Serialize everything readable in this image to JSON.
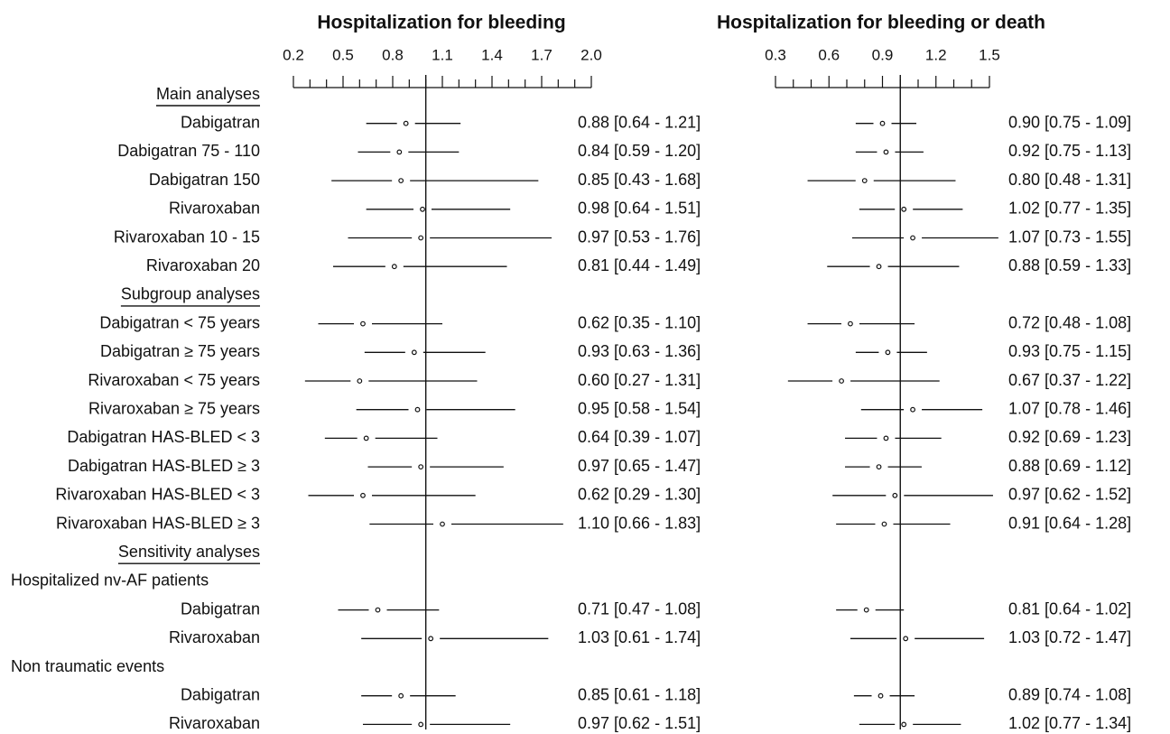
{
  "chart_data": {
    "type": "forest",
    "rows": [
      {
        "label": "Main analyses",
        "kind": "section"
      },
      {
        "label": "Dabigatran",
        "kind": "item"
      },
      {
        "label": "Dabigatran 75 - 110",
        "kind": "item"
      },
      {
        "label": "Dabigatran 150",
        "kind": "item"
      },
      {
        "label": "Rivaroxaban",
        "kind": "item"
      },
      {
        "label": "Rivaroxaban 10 - 15",
        "kind": "item"
      },
      {
        "label": "Rivaroxaban 20",
        "kind": "item"
      },
      {
        "label": "Subgroup analyses",
        "kind": "section"
      },
      {
        "label": "Dabigatran < 75 years",
        "kind": "item"
      },
      {
        "label": "Dabigatran ≥ 75 years",
        "kind": "item"
      },
      {
        "label": "Rivaroxaban < 75 years",
        "kind": "item"
      },
      {
        "label": "Rivaroxaban ≥ 75 years",
        "kind": "item"
      },
      {
        "label": "Dabigatran HAS-BLED < 3",
        "kind": "item"
      },
      {
        "label": "Dabigatran HAS-BLED ≥ 3",
        "kind": "item"
      },
      {
        "label": "Rivaroxaban HAS-BLED < 3",
        "kind": "item"
      },
      {
        "label": "Rivaroxaban HAS-BLED ≥ 3",
        "kind": "item"
      },
      {
        "label": "Sensitivity analyses",
        "kind": "section"
      },
      {
        "label": "Hospitalized nv-AF patients",
        "kind": "subheader"
      },
      {
        "label": "Dabigatran",
        "kind": "item"
      },
      {
        "label": "Rivaroxaban",
        "kind": "item"
      },
      {
        "label": "Non traumatic events",
        "kind": "subheader"
      },
      {
        "label": "Dabigatran",
        "kind": "item"
      },
      {
        "label": "Rivaroxaban",
        "kind": "item"
      }
    ],
    "panels": [
      {
        "title": "Hospitalization for bleeding",
        "xlim": [
          0.2,
          2.0
        ],
        "tick_labels": [
          "0.2",
          "0.5",
          "0.8",
          "1.1",
          "1.4",
          "1.7",
          "2.0"
        ],
        "reference": 1.0,
        "estimates": [
          null,
          {
            "est": 0.88,
            "lo": 0.64,
            "hi": 1.21,
            "text": "0.88 [0.64 - 1.21]"
          },
          {
            "est": 0.84,
            "lo": 0.59,
            "hi": 1.2,
            "text": "0.84 [0.59 - 1.20]"
          },
          {
            "est": 0.85,
            "lo": 0.43,
            "hi": 1.68,
            "text": "0.85 [0.43 - 1.68]"
          },
          {
            "est": 0.98,
            "lo": 0.64,
            "hi": 1.51,
            "text": "0.98 [0.64 - 1.51]"
          },
          {
            "est": 0.97,
            "lo": 0.53,
            "hi": 1.76,
            "text": "0.97 [0.53 - 1.76]"
          },
          {
            "est": 0.81,
            "lo": 0.44,
            "hi": 1.49,
            "text": "0.81 [0.44 - 1.49]"
          },
          null,
          {
            "est": 0.62,
            "lo": 0.35,
            "hi": 1.1,
            "text": "0.62 [0.35 - 1.10]"
          },
          {
            "est": 0.93,
            "lo": 0.63,
            "hi": 1.36,
            "text": "0.93 [0.63 - 1.36]"
          },
          {
            "est": 0.6,
            "lo": 0.27,
            "hi": 1.31,
            "text": "0.60 [0.27 - 1.31]"
          },
          {
            "est": 0.95,
            "lo": 0.58,
            "hi": 1.54,
            "text": "0.95 [0.58 - 1.54]"
          },
          {
            "est": 0.64,
            "lo": 0.39,
            "hi": 1.07,
            "text": "0.64 [0.39 - 1.07]"
          },
          {
            "est": 0.97,
            "lo": 0.65,
            "hi": 1.47,
            "text": "0.97 [0.65 - 1.47]"
          },
          {
            "est": 0.62,
            "lo": 0.29,
            "hi": 1.3,
            "text": "0.62 [0.29 - 1.30]"
          },
          {
            "est": 1.1,
            "lo": 0.66,
            "hi": 1.83,
            "text": "1.10 [0.66 - 1.83]"
          },
          null,
          null,
          {
            "est": 0.71,
            "lo": 0.47,
            "hi": 1.08,
            "text": "0.71 [0.47 - 1.08]"
          },
          {
            "est": 1.03,
            "lo": 0.61,
            "hi": 1.74,
            "text": "1.03 [0.61 - 1.74]"
          },
          null,
          {
            "est": 0.85,
            "lo": 0.61,
            "hi": 1.18,
            "text": "0.85 [0.61 - 1.18]"
          },
          {
            "est": 0.97,
            "lo": 0.62,
            "hi": 1.51,
            "text": "0.97 [0.62 - 1.51]"
          }
        ]
      },
      {
        "title": "Hospitalization for bleeding or death",
        "xlim": [
          0.3,
          1.5
        ],
        "tick_labels": [
          "0.3",
          "0.6",
          "0.9",
          "1.2",
          "1.5"
        ],
        "reference": 1.0,
        "estimates": [
          null,
          {
            "est": 0.9,
            "lo": 0.75,
            "hi": 1.09,
            "text": "0.90 [0.75 - 1.09]"
          },
          {
            "est": 0.92,
            "lo": 0.75,
            "hi": 1.13,
            "text": "0.92 [0.75 - 1.13]"
          },
          {
            "est": 0.8,
            "lo": 0.48,
            "hi": 1.31,
            "text": "0.80 [0.48 - 1.31]"
          },
          {
            "est": 1.02,
            "lo": 0.77,
            "hi": 1.35,
            "text": "1.02 [0.77 - 1.35]"
          },
          {
            "est": 1.07,
            "lo": 0.73,
            "hi": 1.55,
            "text": "1.07 [0.73 - 1.55]"
          },
          {
            "est": 0.88,
            "lo": 0.59,
            "hi": 1.33,
            "text": "0.88 [0.59 - 1.33]"
          },
          null,
          {
            "est": 0.72,
            "lo": 0.48,
            "hi": 1.08,
            "text": "0.72 [0.48 - 1.08]"
          },
          {
            "est": 0.93,
            "lo": 0.75,
            "hi": 1.15,
            "text": "0.93 [0.75 - 1.15]"
          },
          {
            "est": 0.67,
            "lo": 0.37,
            "hi": 1.22,
            "text": "0.67 [0.37 - 1.22]"
          },
          {
            "est": 1.07,
            "lo": 0.78,
            "hi": 1.46,
            "text": "1.07 [0.78 - 1.46]"
          },
          {
            "est": 0.92,
            "lo": 0.69,
            "hi": 1.23,
            "text": "0.92 [0.69 - 1.23]"
          },
          {
            "est": 0.88,
            "lo": 0.69,
            "hi": 1.12,
            "text": "0.88 [0.69 - 1.12]"
          },
          {
            "est": 0.97,
            "lo": 0.62,
            "hi": 1.52,
            "text": "0.97 [0.62 - 1.52]"
          },
          {
            "est": 0.91,
            "lo": 0.64,
            "hi": 1.28,
            "text": "0.91 [0.64 - 1.28]"
          },
          null,
          null,
          {
            "est": 0.81,
            "lo": 0.64,
            "hi": 1.02,
            "text": "0.81 [0.64 - 1.02]"
          },
          {
            "est": 1.03,
            "lo": 0.72,
            "hi": 1.47,
            "text": "1.03 [0.72 - 1.47]"
          },
          null,
          {
            "est": 0.89,
            "lo": 0.74,
            "hi": 1.08,
            "text": "0.89 [0.74 - 1.08]"
          },
          {
            "est": 1.02,
            "lo": 0.77,
            "hi": 1.34,
            "text": "1.02 [0.77 - 1.34]"
          }
        ]
      }
    ]
  }
}
